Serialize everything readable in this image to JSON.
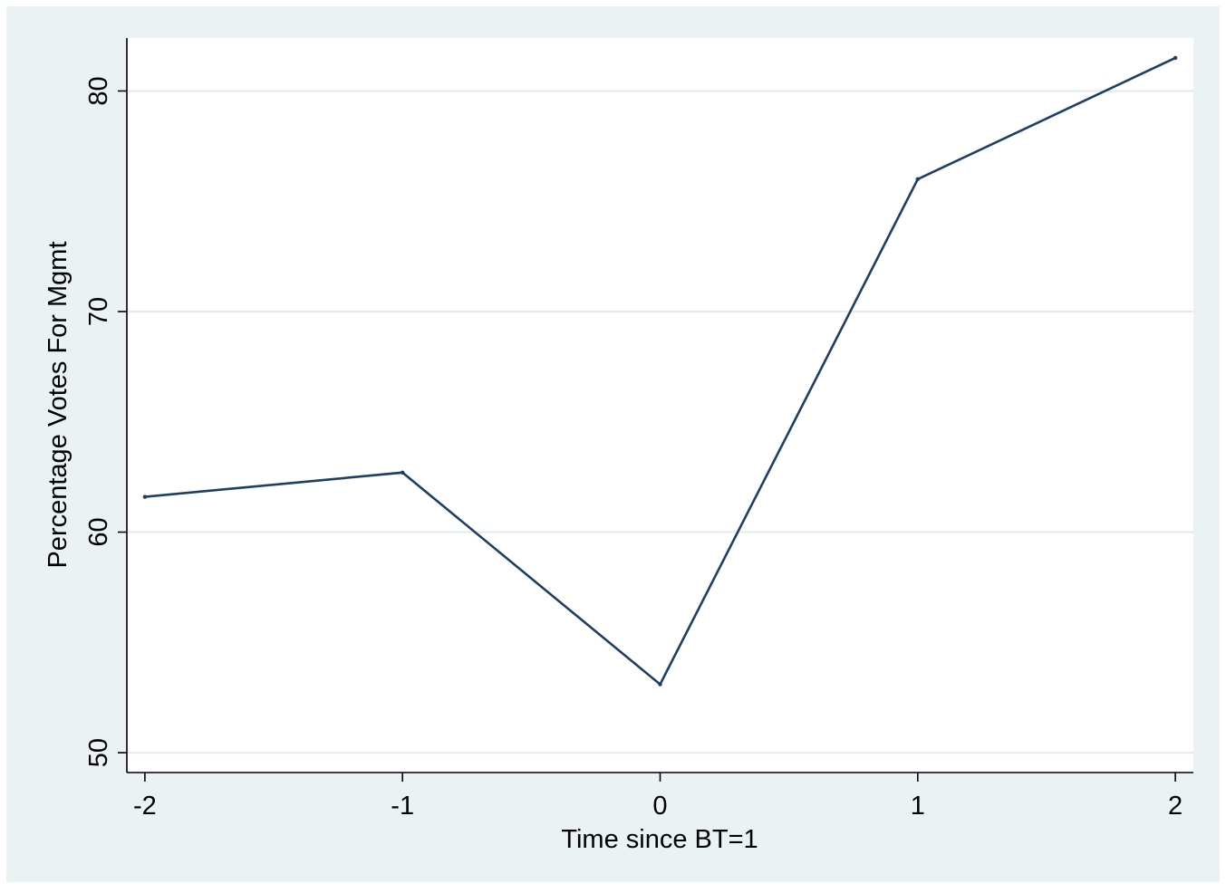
{
  "chart_data": {
    "type": "line",
    "title": "",
    "xlabel": "Time since BT=1",
    "ylabel": "Percentage Votes For Mgmt",
    "x": [
      -2,
      -1,
      0,
      1,
      2
    ],
    "x_ticks": [
      -2,
      -1,
      0,
      1,
      2
    ],
    "x_tick_labels": [
      "-2",
      "-1",
      "0",
      "1",
      "2"
    ],
    "y_ticks": [
      50,
      60,
      70,
      80
    ],
    "y_tick_labels": [
      "50",
      "60",
      "70",
      "80"
    ],
    "xlim": [
      -2.07,
      2.07
    ],
    "ylim": [
      49.1,
      82.4
    ],
    "grid": true,
    "legend": "none",
    "series": [
      {
        "values": [
          61.6,
          62.7,
          53.1,
          76.0,
          81.5
        ],
        "color": "#1f3e64"
      }
    ],
    "colors": {
      "outer_background": "#eaf2f3",
      "plot_background": "#ffffff",
      "grid": "#e2ebec",
      "axis": "#000000",
      "line": "#1f3e64"
    }
  }
}
